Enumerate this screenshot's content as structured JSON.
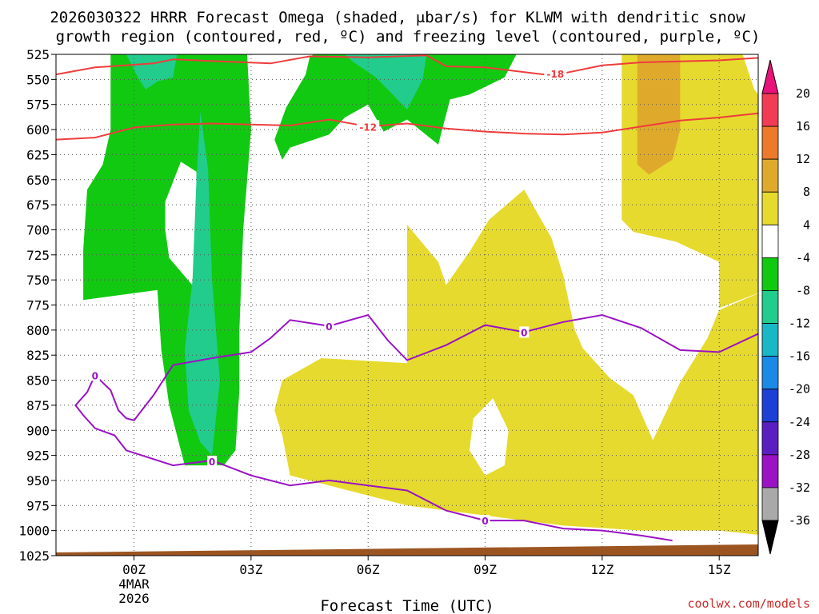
{
  "chart_data": {
    "type": "heatmap",
    "title_line1": "2026030322 HRRR Forecast Omega (shaded, μbar/s) for KLWM with dendritic snow",
    "title_line2": "growth region (contoured, red, ºC) and freezing level (contoured, purple, ºC)",
    "xlabel": "Forecast Time (UTC)",
    "credit": "coolwx.com/models",
    "x_range_hours": [
      -2,
      16
    ],
    "x_ticks": [
      {
        "hour": 0,
        "label": "00Z",
        "sublabels": [
          "4MAR",
          "2026"
        ]
      },
      {
        "hour": 3,
        "label": "03Z"
      },
      {
        "hour": 6,
        "label": "06Z"
      },
      {
        "hour": 9,
        "label": "09Z"
      },
      {
        "hour": 12,
        "label": "12Z"
      },
      {
        "hour": 15,
        "label": "15Z"
      }
    ],
    "y_levels": [
      "525",
      "550",
      "575",
      "600",
      "625",
      "650",
      "675",
      "700",
      "725",
      "750",
      "775",
      "800",
      "825",
      "850",
      "875",
      "900",
      "925",
      "950",
      "975",
      "1000",
      "1025"
    ],
    "y_range_hpa": [
      525,
      1025
    ],
    "colorbar": {
      "ticks": [
        "20",
        "16",
        "12",
        "8",
        "4",
        "-4",
        "-8",
        "-12",
        "-16",
        "-20",
        "-24",
        "-28",
        "-32",
        "-36"
      ],
      "bins": [
        {
          "from": 16,
          "to": 20,
          "color": "#f23c55"
        },
        {
          "from": 12,
          "to": 16,
          "color": "#ec7a2a"
        },
        {
          "from": 8,
          "to": 12,
          "color": "#dfaa2c"
        },
        {
          "from": 4,
          "to": 8,
          "color": "#e6da2e"
        },
        {
          "from": -4,
          "to": 4,
          "color": "#ffffff"
        },
        {
          "from": -8,
          "to": -4,
          "color": "#11c911"
        },
        {
          "from": -12,
          "to": -8,
          "color": "#22cc8c"
        },
        {
          "from": -16,
          "to": -12,
          "color": "#1ab8c6"
        },
        {
          "from": -20,
          "to": -16,
          "color": "#1b8ae6"
        },
        {
          "from": -24,
          "to": -20,
          "color": "#1d3fd6"
        },
        {
          "from": -28,
          "to": -24,
          "color": "#5a1fc0"
        },
        {
          "from": -32,
          "to": -28,
          "color": "#9a12c4"
        },
        {
          "from": -36,
          "to": -32,
          "color": "#a9a9a9"
        }
      ],
      "top_arrow_color": "#e8127a",
      "bottom_arrow_color": "#000000"
    },
    "shaded_regions": [
      {
        "name": "ascent-column-left",
        "value_bin": "-8 to -4",
        "color": "#11c911",
        "points": [
          [
            -0.6,
            525
          ],
          [
            2.9,
            525
          ],
          [
            3.0,
            600
          ],
          [
            2.8,
            700
          ],
          [
            2.7,
            800
          ],
          [
            2.7,
            860
          ],
          [
            2.6,
            920
          ],
          [
            2.3,
            935
          ],
          [
            1.3,
            935
          ],
          [
            0.9,
            875
          ],
          [
            0.7,
            820
          ],
          [
            0.6,
            760
          ],
          [
            -1.3,
            770
          ],
          [
            -1.3,
            720
          ],
          [
            -1.2,
            660
          ],
          [
            -0.8,
            635
          ],
          [
            -0.6,
            600
          ],
          [
            -0.6,
            525
          ]
        ]
      },
      {
        "name": "ascent-hole-left",
        "value_bin": "-4 to 4",
        "color": "#ffffff",
        "points": [
          [
            0.8,
            672
          ],
          [
            1.2,
            632
          ],
          [
            1.6,
            642
          ],
          [
            1.6,
            760
          ],
          [
            0.9,
            728
          ],
          [
            0.8,
            700
          ]
        ]
      },
      {
        "name": "ascent-core-left",
        "value_bin": "-12 to -8",
        "color": "#22cc8c",
        "points": [
          [
            1.7,
            582
          ],
          [
            1.9,
            640
          ],
          [
            2.0,
            750
          ],
          [
            2.2,
            850
          ],
          [
            2.0,
            925
          ],
          [
            1.7,
            912
          ],
          [
            1.4,
            880
          ],
          [
            1.3,
            820
          ],
          [
            1.5,
            750
          ],
          [
            1.6,
            650
          ]
        ]
      },
      {
        "name": "ascent-top-left-core",
        "value_bin": "-12 to -8",
        "color": "#22cc8c",
        "points": [
          [
            -0.2,
            525
          ],
          [
            1.1,
            525
          ],
          [
            1.0,
            548
          ],
          [
            0.6,
            552
          ],
          [
            0.3,
            560
          ],
          [
            0.1,
            548
          ]
        ]
      },
      {
        "name": "ascent-column-middle",
        "value_bin": "-8 to -4",
        "color": "#11c911",
        "points": [
          [
            4.6,
            525
          ],
          [
            9.8,
            525
          ],
          [
            9.5,
            548
          ],
          [
            8.6,
            565
          ],
          [
            8.1,
            570
          ],
          [
            7.8,
            615
          ],
          [
            7.0,
            590
          ],
          [
            6.4,
            602
          ],
          [
            6.0,
            575
          ],
          [
            5.4,
            588
          ],
          [
            5.0,
            605
          ],
          [
            4.0,
            618
          ],
          [
            3.8,
            630
          ],
          [
            3.6,
            610
          ],
          [
            3.9,
            578
          ],
          [
            4.4,
            545
          ],
          [
            4.5,
            528
          ]
        ]
      },
      {
        "name": "ascent-core-middle",
        "value_bin": "-12 to -8",
        "color": "#22cc8c",
        "points": [
          [
            5.4,
            525
          ],
          [
            7.5,
            525
          ],
          [
            7.4,
            550
          ],
          [
            7.0,
            580
          ],
          [
            6.2,
            548
          ],
          [
            5.6,
            532
          ]
        ]
      },
      {
        "name": "descent-mid-right",
        "value_bin": "4 to 8",
        "color": "#e6da2e",
        "points": [
          [
            7.0,
            695
          ],
          [
            7.8,
            732
          ],
          [
            8.0,
            755
          ],
          [
            8.6,
            722
          ],
          [
            9.1,
            690
          ],
          [
            10.0,
            660
          ],
          [
            10.7,
            708
          ],
          [
            11.0,
            745
          ],
          [
            11.3,
            800
          ],
          [
            11.5,
            818
          ],
          [
            12.2,
            848
          ],
          [
            12.8,
            865
          ],
          [
            13.3,
            910
          ],
          [
            14.0,
            852
          ],
          [
            14.7,
            808
          ],
          [
            15.0,
            780
          ],
          [
            16.2,
            760
          ],
          [
            16.2,
            1005
          ],
          [
            15.0,
            1000
          ],
          [
            13.0,
            1000
          ],
          [
            11.0,
            995
          ],
          [
            9.0,
            985
          ],
          [
            7.0,
            975
          ],
          [
            5.5,
            960
          ],
          [
            4.0,
            945
          ],
          [
            3.8,
            905
          ],
          [
            3.6,
            880
          ],
          [
            3.8,
            850
          ],
          [
            4.8,
            828
          ],
          [
            7.0,
            833
          ],
          [
            7.0,
            760
          ]
        ]
      },
      {
        "name": "descent-hole-right",
        "value_bin": "-4 to 4",
        "color": "#ffffff",
        "points": [
          [
            9.2,
            868
          ],
          [
            9.6,
            900
          ],
          [
            9.5,
            935
          ],
          [
            9.0,
            945
          ],
          [
            8.6,
            920
          ],
          [
            8.7,
            888
          ]
        ]
      },
      {
        "name": "descent-upper-right",
        "value_bin": "4 to 8",
        "color": "#e6da2e",
        "points": [
          [
            12.5,
            525
          ],
          [
            16.2,
            525
          ],
          [
            16.2,
            760
          ],
          [
            15.0,
            778
          ],
          [
            15.0,
            732
          ],
          [
            13.9,
            712
          ],
          [
            12.8,
            702
          ],
          [
            12.5,
            690
          ]
        ]
      },
      {
        "name": "descent-core-upper-right",
        "value_bin": "8 to 12",
        "color": "#dfaa2c",
        "points": [
          [
            12.9,
            525
          ],
          [
            14.0,
            525
          ],
          [
            14.0,
            600
          ],
          [
            13.8,
            630
          ],
          [
            13.2,
            645
          ],
          [
            12.9,
            635
          ]
        ]
      },
      {
        "name": "upper-right-white-notch",
        "value_bin": "-4 to 4",
        "color": "#ffffff",
        "points": [
          [
            15.6,
            525
          ],
          [
            16.2,
            525
          ],
          [
            16.2,
            575
          ],
          [
            15.9,
            560
          ]
        ]
      }
    ],
    "dendritic_contours": [
      {
        "label": "-18",
        "color": "#ee3c3c",
        "label_hour": 10.8,
        "label_hpa": 544,
        "points": [
          [
            -2.0,
            545
          ],
          [
            -1.0,
            538
          ],
          [
            0.5,
            534
          ],
          [
            1.0,
            530
          ],
          [
            3.5,
            534
          ],
          [
            4.5,
            527
          ],
          [
            6.0,
            528
          ],
          [
            7.5,
            526
          ],
          [
            8.0,
            537
          ],
          [
            9.0,
            538
          ],
          [
            10.5,
            545
          ],
          [
            11.0,
            544
          ],
          [
            12.0,
            536
          ],
          [
            13.0,
            533
          ],
          [
            14.0,
            532
          ],
          [
            15.0,
            531
          ],
          [
            16.2,
            528
          ]
        ]
      },
      {
        "label": "-12",
        "color": "#ee3c3c",
        "label_hour": 6.0,
        "label_hpa": 597,
        "points": [
          [
            -2.0,
            610
          ],
          [
            -1.0,
            608
          ],
          [
            0.0,
            598
          ],
          [
            1.0,
            595
          ],
          [
            2.0,
            594
          ],
          [
            4.0,
            596
          ],
          [
            5.0,
            590
          ],
          [
            6.0,
            597
          ],
          [
            7.0,
            594
          ],
          [
            8.0,
            599
          ],
          [
            9.0,
            602
          ],
          [
            10.0,
            604
          ],
          [
            11.0,
            605
          ],
          [
            12.0,
            603
          ],
          [
            13.0,
            597
          ],
          [
            14.0,
            591
          ],
          [
            15.0,
            588
          ],
          [
            16.2,
            583
          ]
        ]
      }
    ],
    "freezing_level_contours": [
      {
        "label": "0",
        "color": "#9a12c4",
        "label_hours": [
          -1.0,
          5.0,
          10.0,
          2.0,
          9.0
        ],
        "points": [
          [
            -1.0,
            845
          ],
          [
            -0.6,
            860
          ],
          [
            -0.4,
            880
          ],
          [
            -0.2,
            888
          ],
          [
            0.0,
            890
          ],
          [
            0.5,
            865
          ],
          [
            1.0,
            835
          ],
          [
            2.0,
            828
          ],
          [
            3.0,
            822
          ],
          [
            3.5,
            808
          ],
          [
            4.0,
            790
          ],
          [
            5.0,
            796
          ],
          [
            6.0,
            785
          ],
          [
            6.5,
            810
          ],
          [
            7.0,
            830
          ],
          [
            8.0,
            815
          ],
          [
            9.0,
            795
          ],
          [
            10.0,
            802
          ],
          [
            11.0,
            792
          ],
          [
            12.0,
            785
          ],
          [
            13.0,
            798
          ],
          [
            14.0,
            820
          ],
          [
            15.0,
            822
          ],
          [
            16.2,
            800
          ]
        ]
      },
      {
        "label": "0",
        "color": "#9a12c4",
        "points": [
          [
            -1.0,
            845
          ],
          [
            -1.2,
            862
          ],
          [
            -1.5,
            875
          ],
          [
            -1.3,
            885
          ],
          [
            -1.0,
            898
          ],
          [
            -0.5,
            905
          ],
          [
            -0.2,
            920
          ],
          [
            1.0,
            935
          ],
          [
            2.0,
            930
          ],
          [
            3.0,
            945
          ],
          [
            4.0,
            955
          ],
          [
            5.0,
            950
          ],
          [
            6.0,
            955
          ],
          [
            7.0,
            960
          ],
          [
            8.0,
            980
          ],
          [
            9.0,
            990
          ],
          [
            10.0,
            990
          ],
          [
            11.0,
            998
          ],
          [
            12.0,
            1000
          ],
          [
            13.0,
            1005
          ],
          [
            13.5,
            1008
          ],
          [
            13.8,
            1010
          ]
        ]
      }
    ],
    "terrain_fill_color": "#9c5521"
  }
}
